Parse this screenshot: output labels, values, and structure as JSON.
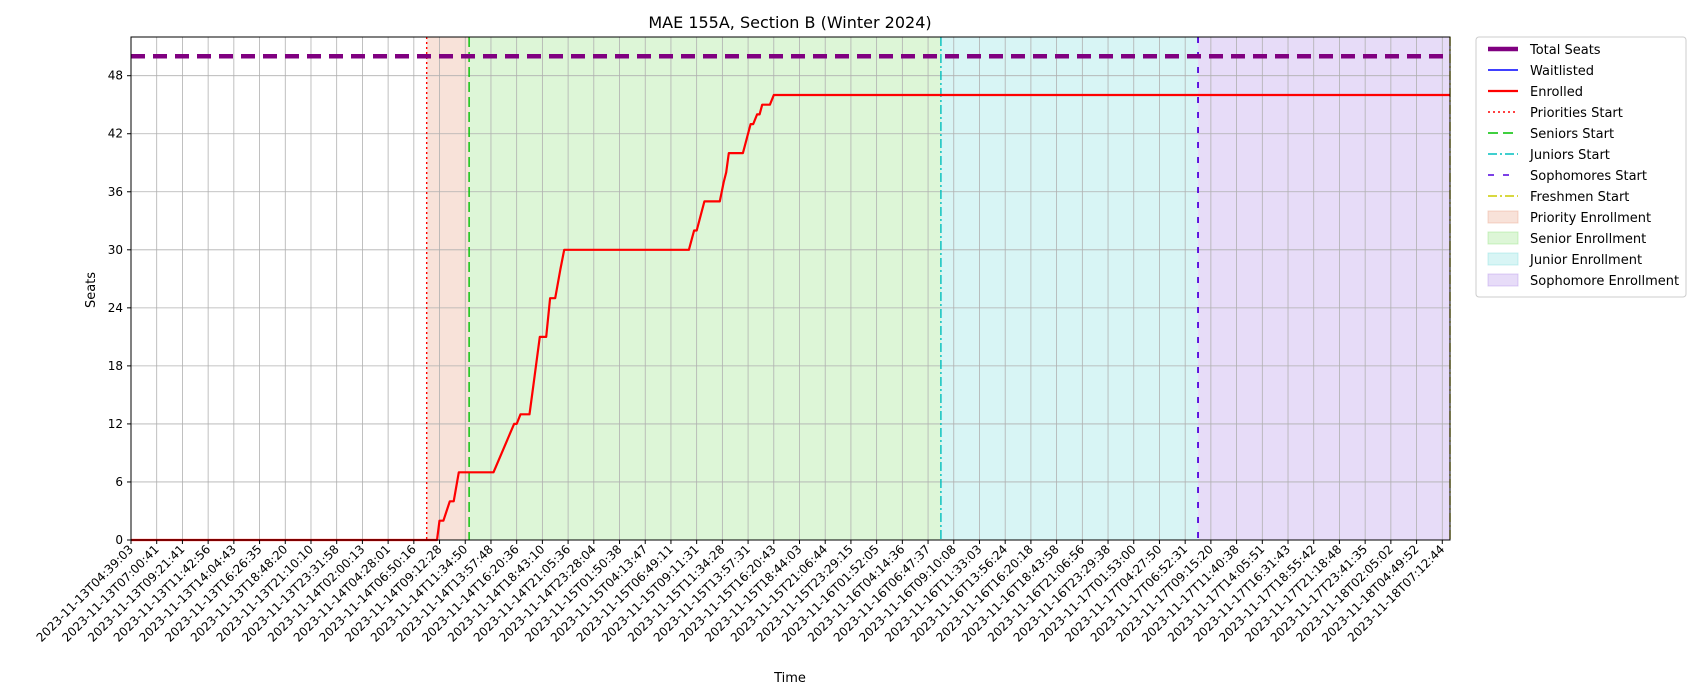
{
  "chart_data": {
    "type": "line",
    "title": "MAE 155A, Section B (Winter 2024)",
    "xlabel": "Time",
    "ylabel": "Seats",
    "ylim": [
      0,
      52
    ],
    "yticks": [
      0,
      6,
      12,
      18,
      24,
      30,
      36,
      42,
      48
    ],
    "grid": true,
    "legend_position": "outside-right",
    "x_ticks": [
      "2023-11-13T04:39:03",
      "2023-11-13T07:00:41",
      "2023-11-13T09:21:41",
      "2023-11-13T11:42:56",
      "2023-11-13T14:04:43",
      "2023-11-13T16:26:35",
      "2023-11-13T18:48:20",
      "2023-11-13T21:10:10",
      "2023-11-13T23:31:58",
      "2023-11-14T02:00:13",
      "2023-11-14T04:28:01",
      "2023-11-14T06:50:16",
      "2023-11-14T09:12:28",
      "2023-11-14T11:34:50",
      "2023-11-14T13:57:48",
      "2023-11-14T16:20:36",
      "2023-11-14T18:43:10",
      "2023-11-14T21:05:36",
      "2023-11-14T23:28:04",
      "2023-11-15T01:50:38",
      "2023-11-15T04:13:47",
      "2023-11-15T06:49:11",
      "2023-11-15T09:11:31",
      "2023-11-15T11:34:28",
      "2023-11-15T13:57:31",
      "2023-11-15T16:20:43",
      "2023-11-15T18:44:03",
      "2023-11-15T21:06:44",
      "2023-11-15T23:29:15",
      "2023-11-16T01:52:05",
      "2023-11-16T04:14:36",
      "2023-11-16T06:47:37",
      "2023-11-16T09:10:08",
      "2023-11-16T11:33:03",
      "2023-11-16T13:56:24",
      "2023-11-16T16:20:18",
      "2023-11-16T18:43:58",
      "2023-11-16T21:06:56",
      "2023-11-16T23:29:38",
      "2023-11-17T01:53:00",
      "2023-11-17T04:27:50",
      "2023-11-17T06:52:31",
      "2023-11-17T09:15:20",
      "2023-11-17T11:40:38",
      "2023-11-17T14:05:51",
      "2023-11-17T16:31:43",
      "2023-11-17T18:55:42",
      "2023-11-17T21:18:48",
      "2023-11-17T23:41:35",
      "2023-11-18T02:05:02",
      "2023-11-18T04:49:52",
      "2023-11-18T07:12:44"
    ],
    "x_range": [
      0,
      51.3
    ],
    "series": [
      {
        "name": "Total Seats",
        "style": "dashed",
        "color": "#800080",
        "points": [
          [
            0,
            50
          ],
          [
            51.3,
            50
          ]
        ]
      },
      {
        "name": "Waitlisted",
        "style": "solid",
        "color": "#0000ff",
        "points": []
      },
      {
        "name": "Enrolled",
        "style": "solid",
        "color": "#ff0000",
        "points": [
          [
            0,
            0
          ],
          [
            11.9,
            0
          ],
          [
            12.0,
            2
          ],
          [
            12.15,
            2
          ],
          [
            12.4,
            4
          ],
          [
            12.55,
            4
          ],
          [
            12.75,
            7
          ],
          [
            14.1,
            7
          ],
          [
            14.9,
            12
          ],
          [
            15.0,
            12
          ],
          [
            15.15,
            13
          ],
          [
            15.5,
            13
          ],
          [
            15.65,
            16
          ],
          [
            15.9,
            21
          ],
          [
            16.15,
            21
          ],
          [
            16.3,
            25
          ],
          [
            16.5,
            25
          ],
          [
            16.7,
            28
          ],
          [
            16.85,
            30
          ],
          [
            21.7,
            30
          ],
          [
            21.9,
            32
          ],
          [
            22.0,
            32
          ],
          [
            22.3,
            35
          ],
          [
            22.9,
            35
          ],
          [
            23.05,
            37
          ],
          [
            23.15,
            38
          ],
          [
            23.25,
            40
          ],
          [
            23.8,
            40
          ],
          [
            24.1,
            43
          ],
          [
            24.2,
            43
          ],
          [
            24.35,
            44
          ],
          [
            24.45,
            44
          ],
          [
            24.55,
            45
          ],
          [
            24.85,
            45
          ],
          [
            25.0,
            46
          ],
          [
            51.3,
            46
          ]
        ]
      }
    ],
    "phase_lines": [
      {
        "name": "Priorities Start",
        "x": 11.5,
        "color": "#ff0000",
        "style": "dotted"
      },
      {
        "name": "Seniors Start",
        "x": 13.15,
        "color": "#00c000",
        "style": "dashed"
      },
      {
        "name": "Juniors Start",
        "x": 31.5,
        "color": "#00bfbf",
        "style": "dashdot"
      },
      {
        "name": "Sophomores Start",
        "x": 41.5,
        "color": "#5000dd",
        "style": "loosedash"
      },
      {
        "name": "Freshmen Start",
        "x": 51.3,
        "color": "#cccc00",
        "style": "dashdot"
      }
    ],
    "phase_regions": [
      {
        "name": "Priority Enrollment",
        "x0": 11.5,
        "x1": 13.15,
        "color": "#e8a081"
      },
      {
        "name": "Senior Enrollment",
        "x0": 13.15,
        "x1": 31.5,
        "color": "#8fe07a"
      },
      {
        "name": "Junior Enrollment",
        "x0": 31.5,
        "x1": 41.5,
        "color": "#7ddede"
      },
      {
        "name": "Sophomore Enrollment",
        "x0": 41.5,
        "x1": 51.3,
        "color": "#ae8ae8"
      }
    ]
  }
}
